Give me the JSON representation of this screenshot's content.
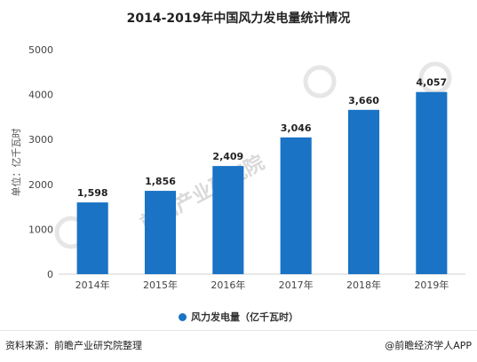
{
  "title": "2014-2019年中国风力发电量统计情况",
  "chart_data": {
    "type": "bar",
    "title": "2014-2019年中国风力发电量统计情况",
    "categories": [
      "2014年",
      "2015年",
      "2016年",
      "2017年",
      "2018年",
      "2019年"
    ],
    "series": [
      {
        "name": "风力发电量（亿千瓦时）",
        "values": [
          1598,
          1856,
          2409,
          3046,
          3660,
          4057
        ]
      }
    ],
    "data_labels": [
      "1,598",
      "1,856",
      "2,409",
      "3,046",
      "3,660",
      "4,057"
    ],
    "yticks": [
      "0",
      "1000",
      "2000",
      "3000",
      "4000",
      "5000"
    ],
    "ylabel": "单位：亿千瓦时",
    "xlabel": "",
    "ylim": [
      0,
      5000
    ],
    "grid": false,
    "legend": "bottom-center",
    "bar_color": "#1a73c5"
  },
  "legend_label": "风力发电量（亿千瓦时）",
  "footer": {
    "source": "资料来源：前瞻产业研究院整理",
    "brand": "@前瞻经济学人APP"
  },
  "watermark": {
    "main": "前瞻产业研究院"
  }
}
